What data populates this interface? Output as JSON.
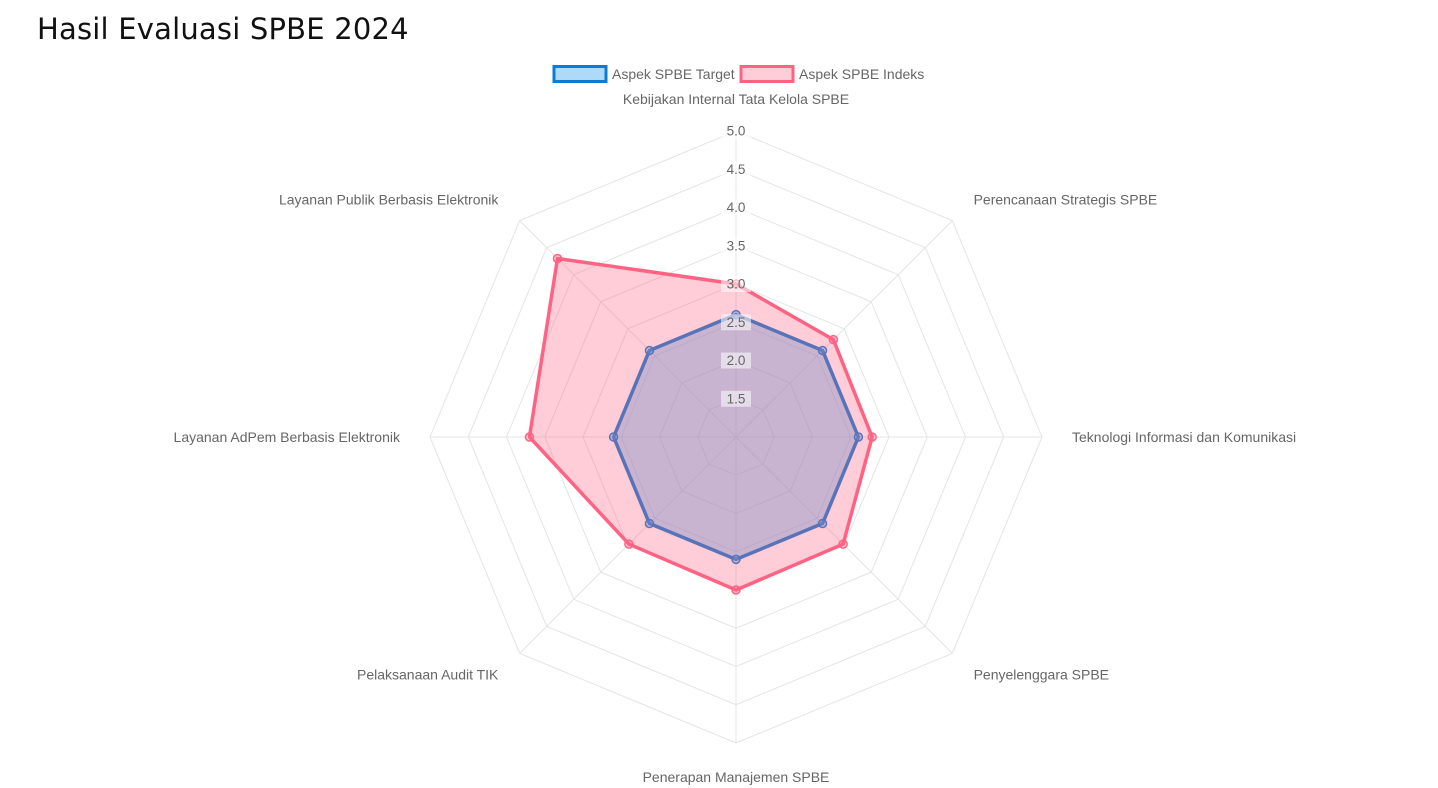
{
  "page": {
    "title": "Hasil Evaluasi SPBE 2024"
  },
  "chart_data": {
    "type": "radar",
    "title": "",
    "categories": [
      "Kebijakan Internal Tata Kelola SPBE",
      "Perencanaan Strategis SPBE",
      "Teknologi Informasi dan Komunikasi",
      "Penyelenggara SPBE",
      "Penerapan Manajemen SPBE",
      "Pelaksanaan Audit TIK",
      "Layanan AdPem Berbasis Elektronik",
      "Layanan Publik Berbasis Elektronik"
    ],
    "series": [
      {
        "name": "Aspek SPBE Target",
        "values": [
          2.6,
          2.6,
          2.6,
          2.6,
          2.6,
          2.6,
          2.6,
          2.6
        ],
        "border_color": "#0b7bd3",
        "fill_color": "rgba(54,162,235,0.40)"
      },
      {
        "name": "Aspek SPBE Indeks",
        "values": [
          3.0,
          2.8,
          2.78,
          2.98,
          3.0,
          2.98,
          3.7,
          4.3
        ],
        "border_color": "#ff6384",
        "fill_color": "rgba(255,99,132,0.32)"
      }
    ],
    "r_min": 1.0,
    "r_max": 5.0,
    "ticks": [
      "1.5",
      "2.0",
      "2.5",
      "3.0",
      "3.5",
      "4.0",
      "4.5",
      "5.0"
    ],
    "grid": true,
    "legend_position": "top"
  }
}
